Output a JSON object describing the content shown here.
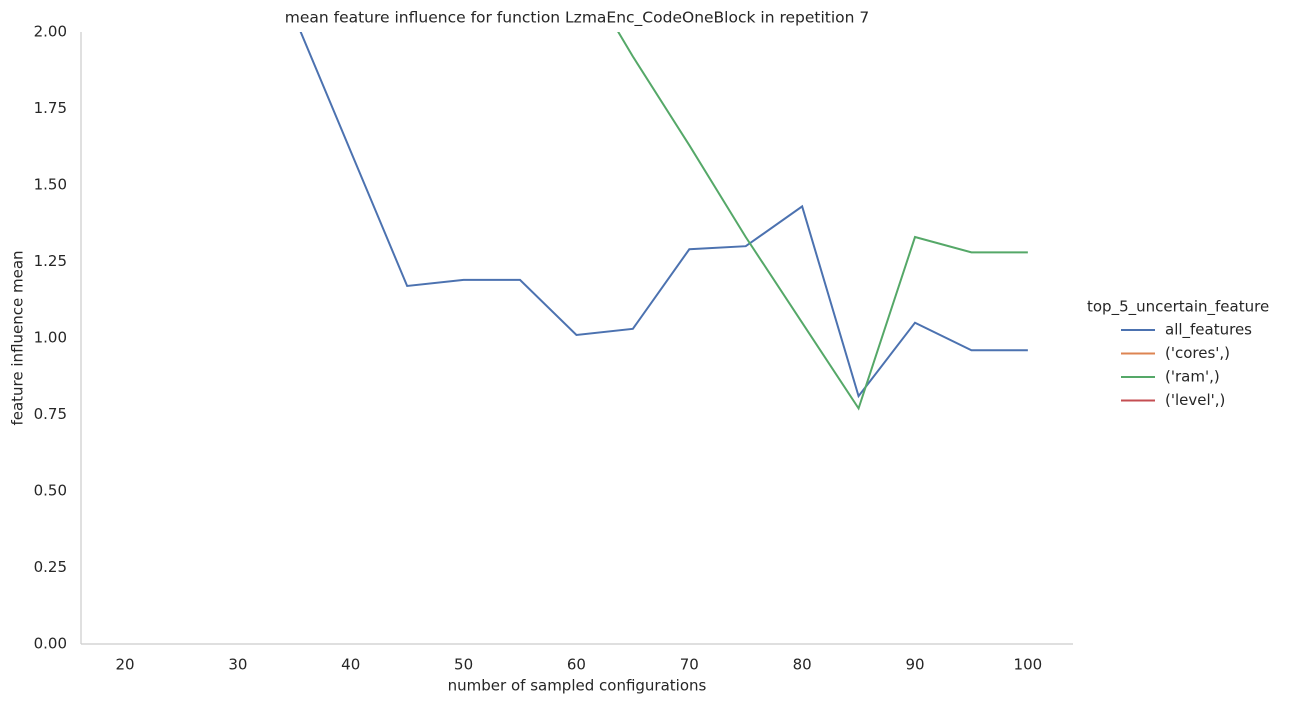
{
  "chart_data": {
    "type": "line",
    "title": "mean feature influence for function LzmaEnc_CodeOneBlock in repetition 7",
    "x_label": "number of sampled configurations",
    "y_label": "feature influence mean",
    "legend_title": "top_5_uncertain_feature",
    "x": [
      35,
      40,
      45,
      50,
      55,
      60,
      65,
      70,
      75,
      80,
      85,
      90,
      95,
      100
    ],
    "series": [
      {
        "name": "all_features",
        "color": "#4c72b0",
        "values": [
          2.05,
          1.61,
          1.17,
          1.19,
          1.19,
          1.01,
          1.03,
          1.29,
          1.3,
          1.43,
          0.81,
          1.05,
          0.96,
          0.96
        ]
      },
      {
        "name": "('cores',)",
        "color": "#dd8452",
        "values": [
          null,
          null,
          null,
          null,
          null,
          null,
          null,
          null,
          null,
          null,
          null,
          null,
          null,
          null
        ]
      },
      {
        "name": "('ram',)",
        "color": "#55a868",
        "values": [
          null,
          null,
          null,
          null,
          null,
          2.23,
          1.92,
          1.63,
          1.33,
          1.05,
          0.77,
          1.33,
          1.28,
          1.28
        ]
      },
      {
        "name": "('level',)",
        "color": "#c44e52",
        "values": [
          null,
          null,
          null,
          null,
          null,
          null,
          null,
          null,
          null,
          null,
          null,
          null,
          null,
          null
        ]
      }
    ],
    "xlim": [
      16.1,
      104
    ],
    "ylim": [
      0,
      2
    ],
    "xticks": [
      20,
      30,
      40,
      50,
      60,
      70,
      80,
      90,
      100
    ],
    "yticks": [
      {
        "value": 0,
        "label": "0.00"
      },
      {
        "value": 0.25,
        "label": "0.25"
      },
      {
        "value": 0.5,
        "label": "0.50"
      },
      {
        "value": 0.75,
        "label": "0.75"
      },
      {
        "value": 1,
        "label": "1.00"
      },
      {
        "value": 1.25,
        "label": "1.25"
      },
      {
        "value": 1.5,
        "label": "1.50"
      },
      {
        "value": 1.75,
        "label": "1.75"
      },
      {
        "value": 2,
        "label": "2.00"
      }
    ],
    "grid": false,
    "legend_position": "right"
  }
}
